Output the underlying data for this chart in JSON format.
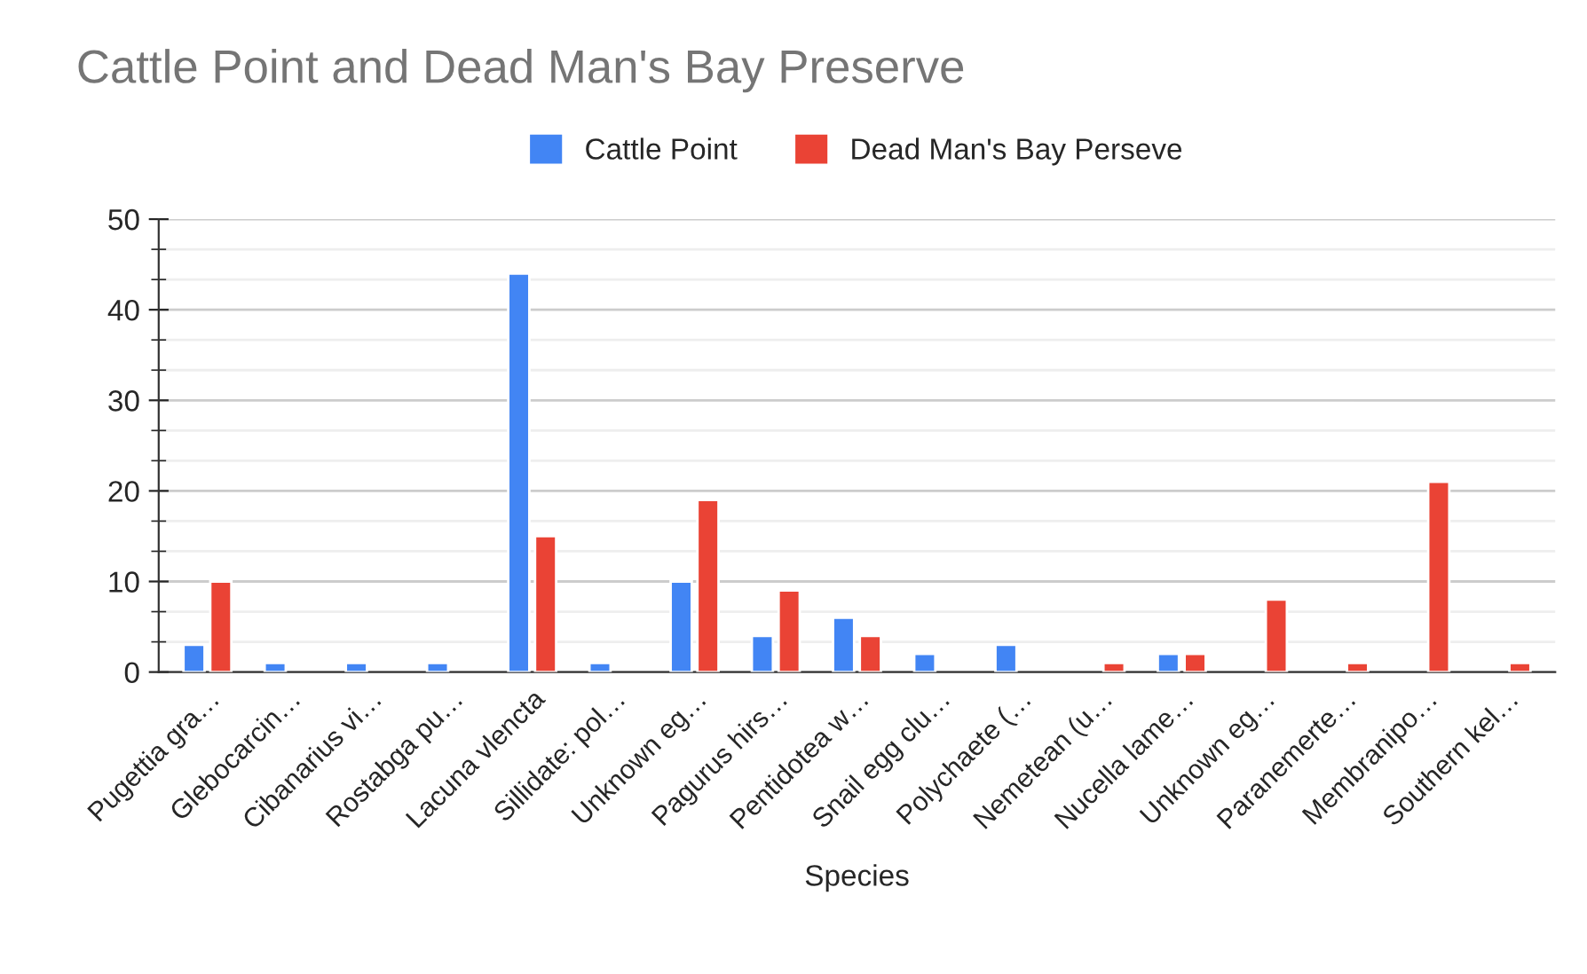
{
  "chart_data": {
    "type": "bar",
    "title": "Cattle Point and Dead Man's Bay Preserve",
    "xlabel": "Species",
    "categories": [
      "Pugettia gra…",
      "Glebocarcin…",
      "Cibanarius vi…",
      "Rostabga pu…",
      "Lacuna vlencta",
      "Sillidate: pol…",
      "Unknown eg…",
      "Pagurus hirs…",
      "Pentidotea w…",
      "Snail egg clu…",
      "Polychaete (…",
      "Nemetean (u…",
      "Nucella lame…",
      "Unknown eg…",
      "Paranemerte…",
      "Membranipo…",
      "Southern kel…"
    ],
    "series": [
      {
        "name": "Cattle Point",
        "color": "#4285f4",
        "values": [
          3,
          1,
          1,
          1,
          44,
          1,
          10,
          4,
          6,
          2,
          3,
          null,
          2,
          null,
          null,
          null,
          null
        ]
      },
      {
        "name": "Dead Man's Bay Perseve",
        "color": "#ea4335",
        "values": [
          10,
          null,
          null,
          null,
          15,
          null,
          19,
          9,
          4,
          null,
          null,
          1,
          2,
          8,
          1,
          21,
          1
        ]
      }
    ],
    "ylim": [
      0,
      50
    ],
    "yticks": [
      0,
      10,
      20,
      30,
      40,
      50
    ],
    "grid": "y",
    "legend": "top"
  }
}
